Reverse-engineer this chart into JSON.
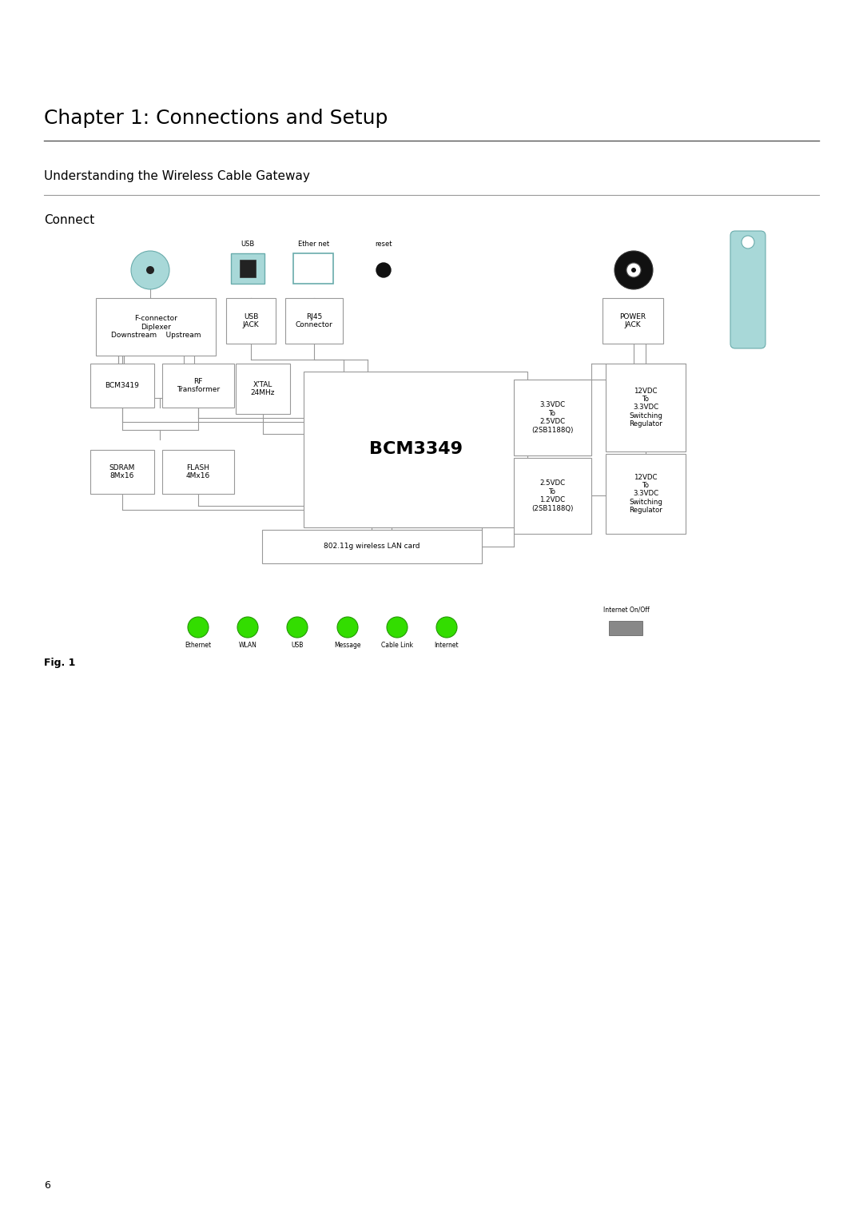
{
  "title": "Chapter 1: Connections and Setup",
  "subtitle": "Understanding the Wireless Cable Gateway",
  "section": "Connect",
  "fig_label": "Fig. 1",
  "page_num": "6",
  "bg": "#ffffff",
  "title_fs": 18,
  "subtitle_fs": 11,
  "section_fs": 11,
  "box_ec": "#999999",
  "box_fc": "#ffffff",
  "teal": "#a8d8d8",
  "dark_teal": "#6aacac",
  "green_led": "#33dd00",
  "led_ec": "#229900",
  "gray_btn": "#888888",
  "line_c": "#999999",
  "text_c": "#000000"
}
